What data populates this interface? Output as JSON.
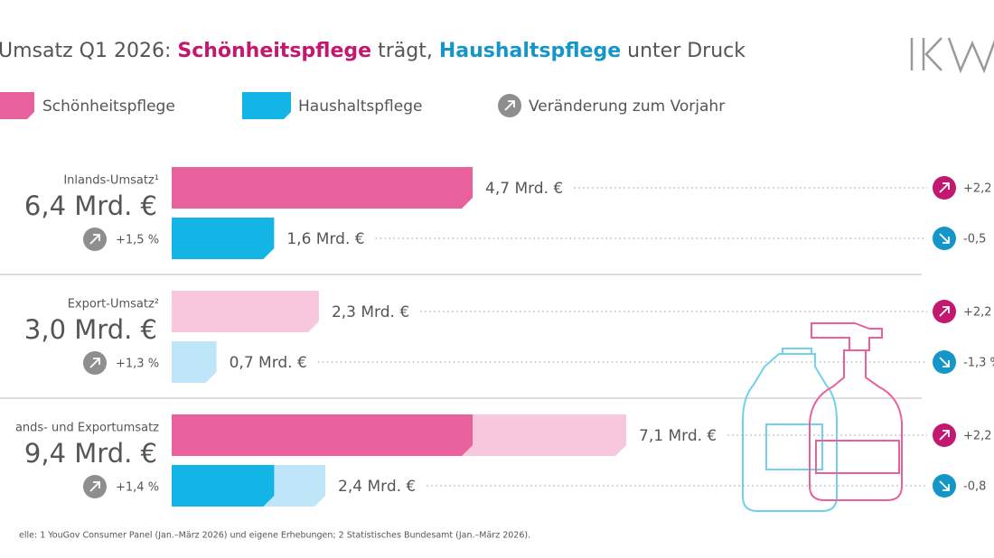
{
  "chart_data": {
    "type": "bar",
    "title": [
      "Umsatz Q1 2026:",
      "Schönheitspflege",
      "trägt,",
      "Haushaltspflege",
      "unter Druck"
    ],
    "change_legend": "Veränderung zum Vorjahr",
    "series": [
      {
        "name": "Schönheitspflege",
        "color": "#e8619c",
        "light_color": "#f7c8dd",
        "text_color": "#c2186f",
        "values": [
          4.7,
          2.3,
          7.1
        ],
        "value_labels": [
          "4,7 Mrd. €",
          "2,3 Mrd. €",
          "7,1 Mrd. €"
        ],
        "change_labels": [
          "+2,2",
          "+2,2",
          "+2,2"
        ]
      },
      {
        "name": "Haushaltspflege",
        "color": "#13b5e6",
        "light_color": "#bfe6f8",
        "text_color": "#1496c8",
        "values": [
          1.6,
          0.7,
          2.4
        ],
        "value_labels": [
          "1,6 Mrd. €",
          "0,7 Mrd. €",
          "2,4 Mrd. €"
        ],
        "change_labels": [
          "-0,5",
          "-1,3 %",
          "-0,8"
        ]
      }
    ],
    "groups": [
      {
        "label": "Inlands-Umsatz¹",
        "total": "6,4 Mrd. €",
        "total_change": "+1,5 %",
        "shade": "dark"
      },
      {
        "label": "Export-Umsatz²",
        "total": "3,0 Mrd. €",
        "total_change": "+1,3 %",
        "shade": "light"
      },
      {
        "label": "ands- und Exportumsatz",
        "total": "9,4 Mrd. €",
        "total_change": "+1,4 %",
        "shade": "light",
        "overlay_group": 0
      }
    ],
    "footnote": "elle: 1 YouGov Consumer Panel (Jan.–März 2026) und eigene Erhebungen; 2 Statistisches Bundesamt (Jan.–März 2026)."
  }
}
